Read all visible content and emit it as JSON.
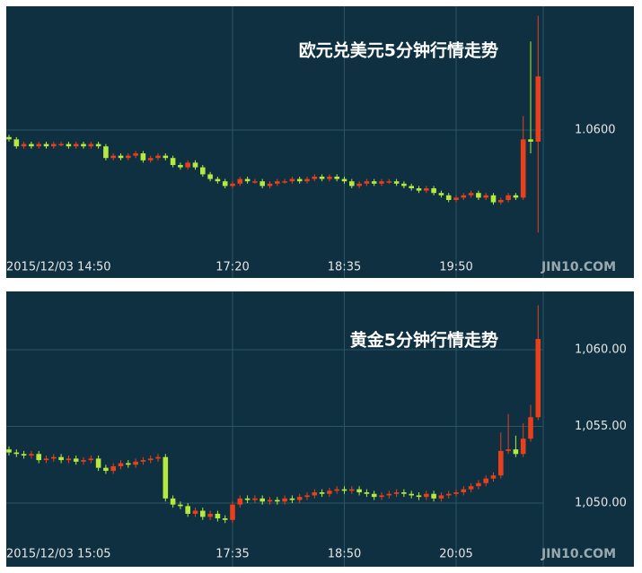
{
  "chart_data": [
    {
      "type": "candlestick",
      "title": "欧元兑美元5分钟行情走势",
      "watermark": "JIN10.COM",
      "categories": [
        "2015/12/03 14:50",
        null,
        null,
        null,
        null,
        null,
        null,
        null,
        null,
        null,
        null,
        null,
        null,
        null,
        null,
        null,
        null,
        null,
        null,
        null,
        null,
        null,
        null,
        null,
        null,
        null,
        null,
        null,
        null,
        null,
        "17:20",
        null,
        null,
        null,
        null,
        null,
        null,
        null,
        null,
        null,
        null,
        null,
        null,
        null,
        null,
        "18:35",
        null,
        null,
        null,
        null,
        null,
        null,
        null,
        null,
        null,
        null,
        null,
        null,
        null,
        null,
        "19:50",
        null,
        null,
        null,
        null,
        null,
        null,
        null,
        null,
        null,
        null,
        null
      ],
      "open": [
        1.0597,
        1.0596,
        1.0593,
        1.0594,
        1.0593,
        1.0594,
        1.0593,
        1.0594,
        1.0594,
        1.0593,
        1.0594,
        1.0593,
        1.0594,
        1.0593,
        1.0588,
        1.0589,
        1.0588,
        1.0589,
        1.059,
        1.0587,
        1.0588,
        1.0589,
        1.0588,
        1.0585,
        1.0584,
        1.0586,
        1.0584,
        1.0581,
        1.0579,
        1.0578,
        1.0576,
        1.0577,
        1.0579,
        1.0578,
        1.0578,
        1.0576,
        1.0577,
        1.0578,
        1.0578,
        1.0579,
        1.0578,
        1.0579,
        1.058,
        1.0579,
        1.058,
        1.0579,
        1.0578,
        1.0576,
        1.0577,
        1.0578,
        1.0577,
        1.0578,
        1.0578,
        1.0577,
        1.0576,
        1.0575,
        1.0574,
        1.0575,
        1.0573,
        1.0572,
        1.057,
        1.0571,
        1.0572,
        1.0573,
        1.0571,
        1.0572,
        1.0569,
        1.057,
        1.0572,
        1.0571,
        1.0596,
        1.0595
      ],
      "high": [
        1.0598,
        1.0597,
        1.0595,
        1.0595,
        1.0595,
        1.0595,
        1.0595,
        1.0595,
        1.0595,
        1.0595,
        1.0595,
        1.0595,
        1.0595,
        1.0594,
        1.059,
        1.059,
        1.059,
        1.0591,
        1.0591,
        1.0589,
        1.059,
        1.059,
        1.0589,
        1.0586,
        1.0587,
        1.0587,
        1.0585,
        1.0582,
        1.058,
        1.0579,
        1.0578,
        1.058,
        1.058,
        1.0579,
        1.0579,
        1.0578,
        1.0579,
        1.0579,
        1.058,
        1.058,
        1.058,
        1.0581,
        1.0581,
        1.0581,
        1.0581,
        1.058,
        1.0579,
        1.0578,
        1.0579,
        1.0579,
        1.0579,
        1.0579,
        1.0579,
        1.0578,
        1.0577,
        1.0576,
        1.0576,
        1.0576,
        1.0574,
        1.0573,
        1.0572,
        1.0573,
        1.0574,
        1.0574,
        1.0573,
        1.0573,
        1.0571,
        1.0573,
        1.0573,
        1.0606,
        1.0638,
        1.0649
      ],
      "low": [
        1.0595,
        1.0592,
        1.0592,
        1.0592,
        1.0592,
        1.0592,
        1.0592,
        1.0593,
        1.0592,
        1.0592,
        1.0592,
        1.0592,
        1.0592,
        1.0587,
        1.0587,
        1.0587,
        1.0587,
        1.0588,
        1.0586,
        1.0586,
        1.0587,
        1.0587,
        1.0584,
        1.0583,
        1.0583,
        1.0583,
        1.058,
        1.0578,
        1.0577,
        1.0575,
        1.0575,
        1.0576,
        1.0577,
        1.0577,
        1.0575,
        1.0575,
        1.0576,
        1.0577,
        1.0577,
        1.0577,
        1.0577,
        1.0578,
        1.0578,
        1.0578,
        1.0578,
        1.0577,
        1.0575,
        1.0575,
        1.0576,
        1.0576,
        1.0576,
        1.0577,
        1.0576,
        1.0575,
        1.0574,
        1.0573,
        1.0573,
        1.0572,
        1.0571,
        1.0569,
        1.0569,
        1.057,
        1.0571,
        1.057,
        1.057,
        1.0568,
        1.0568,
        1.0569,
        1.057,
        1.057,
        1.059,
        1.0556
      ],
      "close": [
        1.0596,
        1.0593,
        1.0594,
        1.0593,
        1.0594,
        1.0593,
        1.0594,
        1.0594,
        1.0593,
        1.0594,
        1.0593,
        1.0594,
        1.0593,
        1.0588,
        1.0589,
        1.0588,
        1.0589,
        1.059,
        1.0587,
        1.0588,
        1.0589,
        1.0588,
        1.0585,
        1.0584,
        1.0586,
        1.0584,
        1.0581,
        1.0579,
        1.0578,
        1.0576,
        1.0577,
        1.0579,
        1.0578,
        1.0578,
        1.0576,
        1.0577,
        1.0578,
        1.0578,
        1.0579,
        1.0578,
        1.0579,
        1.058,
        1.0579,
        1.058,
        1.0579,
        1.0578,
        1.0576,
        1.0577,
        1.0578,
        1.0577,
        1.0578,
        1.0578,
        1.0577,
        1.0576,
        1.0575,
        1.0574,
        1.0575,
        1.0573,
        1.0572,
        1.057,
        1.0571,
        1.0572,
        1.0573,
        1.0571,
        1.0572,
        1.0569,
        1.057,
        1.0572,
        1.0571,
        1.0596,
        1.0595,
        1.0623
      ],
      "ylim": [
        1.055,
        1.065
      ],
      "yticks": [
        {
          "value": 1.06,
          "label": "1.0600"
        }
      ],
      "up_color": "#e8401c",
      "down_color": "#b4ea3e",
      "grid": true
    },
    {
      "type": "candlestick",
      "title": "黄金5分钟行情走势",
      "watermark": "JIN10.COM",
      "categories": [
        "2015/12/03 15:05",
        null,
        null,
        null,
        null,
        null,
        null,
        null,
        null,
        null,
        null,
        null,
        null,
        null,
        null,
        null,
        null,
        null,
        null,
        null,
        null,
        null,
        null,
        null,
        null,
        null,
        null,
        null,
        null,
        null,
        "17:35",
        null,
        null,
        null,
        null,
        null,
        null,
        null,
        null,
        null,
        null,
        null,
        null,
        null,
        null,
        "18:50",
        null,
        null,
        null,
        null,
        null,
        null,
        null,
        null,
        null,
        null,
        null,
        null,
        null,
        null,
        "20:05",
        null,
        null,
        null,
        null,
        null,
        null,
        null,
        null,
        null,
        null,
        null
      ],
      "open": [
        1053.5,
        1053.3,
        1053.2,
        1053.1,
        1053.2,
        1052.8,
        1052.9,
        1053.0,
        1052.8,
        1052.9,
        1052.7,
        1052.8,
        1052.9,
        1052.3,
        1052.1,
        1052.4,
        1052.6,
        1052.5,
        1052.7,
        1052.8,
        1052.9,
        1053.0,
        1050.3,
        1049.9,
        1049.8,
        1049.3,
        1049.5,
        1049.1,
        1049.3,
        1049.0,
        1048.9,
        1049.9,
        1050.3,
        1050.2,
        1050.3,
        1050.1,
        1050.2,
        1050.1,
        1050.3,
        1050.2,
        1050.4,
        1050.5,
        1050.7,
        1050.6,
        1050.8,
        1050.9,
        1050.8,
        1050.9,
        1050.7,
        1050.6,
        1050.4,
        1050.5,
        1050.6,
        1050.7,
        1050.6,
        1050.5,
        1050.4,
        1050.6,
        1050.3,
        1050.5,
        1050.6,
        1050.7,
        1050.9,
        1051.1,
        1051.3,
        1051.6,
        1051.8,
        1053.4,
        1053.5,
        1053.2,
        1054.2,
        1055.6
      ],
      "high": [
        1053.7,
        1053.5,
        1053.4,
        1053.4,
        1053.4,
        1053.1,
        1053.2,
        1053.2,
        1053.1,
        1053.1,
        1053.0,
        1053.1,
        1053.1,
        1052.5,
        1052.6,
        1052.8,
        1052.8,
        1052.9,
        1053.0,
        1053.1,
        1053.2,
        1053.2,
        1050.5,
        1050.1,
        1050.0,
        1049.7,
        1049.7,
        1049.5,
        1049.5,
        1049.2,
        1050.1,
        1050.5,
        1050.5,
        1050.5,
        1050.5,
        1050.4,
        1050.4,
        1050.5,
        1050.5,
        1050.6,
        1050.7,
        1050.9,
        1050.9,
        1051.0,
        1051.1,
        1051.1,
        1051.1,
        1051.1,
        1050.9,
        1050.8,
        1050.7,
        1050.8,
        1050.9,
        1050.9,
        1050.8,
        1050.7,
        1050.8,
        1050.8,
        1050.7,
        1050.8,
        1050.9,
        1051.1,
        1051.3,
        1051.5,
        1051.8,
        1052.0,
        1054.6,
        1055.8,
        1054.4,
        1055.2,
        1056.4,
        1062.9
      ],
      "low": [
        1053.1,
        1053.0,
        1052.9,
        1052.9,
        1052.6,
        1052.6,
        1052.7,
        1052.6,
        1052.6,
        1052.5,
        1052.5,
        1052.6,
        1052.1,
        1051.9,
        1051.9,
        1052.2,
        1052.3,
        1052.3,
        1052.5,
        1052.6,
        1052.7,
        1050.1,
        1049.7,
        1049.6,
        1049.1,
        1049.1,
        1048.9,
        1048.9,
        1048.8,
        1048.7,
        1048.7,
        1049.7,
        1050.0,
        1050.0,
        1049.9,
        1049.9,
        1049.9,
        1049.9,
        1050.0,
        1050.0,
        1050.2,
        1050.3,
        1050.4,
        1050.4,
        1050.6,
        1050.6,
        1050.6,
        1050.5,
        1050.4,
        1050.2,
        1050.2,
        1050.3,
        1050.4,
        1050.4,
        1050.3,
        1050.2,
        1050.2,
        1050.1,
        1050.1,
        1050.3,
        1050.4,
        1050.5,
        1050.7,
        1050.9,
        1051.1,
        1051.4,
        1051.6,
        1053.2,
        1053.0,
        1053.0,
        1054.0,
        1055.4
      ],
      "close": [
        1053.3,
        1053.2,
        1053.1,
        1053.2,
        1052.8,
        1052.9,
        1053.0,
        1052.8,
        1052.9,
        1052.7,
        1052.8,
        1052.9,
        1052.3,
        1052.1,
        1052.4,
        1052.6,
        1052.5,
        1052.7,
        1052.8,
        1052.9,
        1053.0,
        1050.3,
        1049.9,
        1049.8,
        1049.3,
        1049.5,
        1049.1,
        1049.3,
        1049.0,
        1048.9,
        1049.9,
        1050.3,
        1050.2,
        1050.3,
        1050.1,
        1050.2,
        1050.1,
        1050.3,
        1050.2,
        1050.4,
        1050.5,
        1050.7,
        1050.6,
        1050.8,
        1050.9,
        1050.8,
        1050.9,
        1050.7,
        1050.6,
        1050.4,
        1050.5,
        1050.6,
        1050.7,
        1050.6,
        1050.5,
        1050.4,
        1050.6,
        1050.3,
        1050.5,
        1050.6,
        1050.7,
        1050.9,
        1051.1,
        1051.3,
        1051.6,
        1051.8,
        1053.4,
        1053.5,
        1053.2,
        1054.2,
        1055.6,
        1060.7
      ],
      "ylim": [
        1048,
        1063.5
      ],
      "yticks": [
        {
          "value": 1060,
          "label": "1,060.00"
        },
        {
          "value": 1055,
          "label": "1,055.00"
        },
        {
          "value": 1050,
          "label": "1,050.00"
        }
      ],
      "up_color": "#e8401c",
      "down_color": "#b4ea3e",
      "grid": true
    }
  ]
}
